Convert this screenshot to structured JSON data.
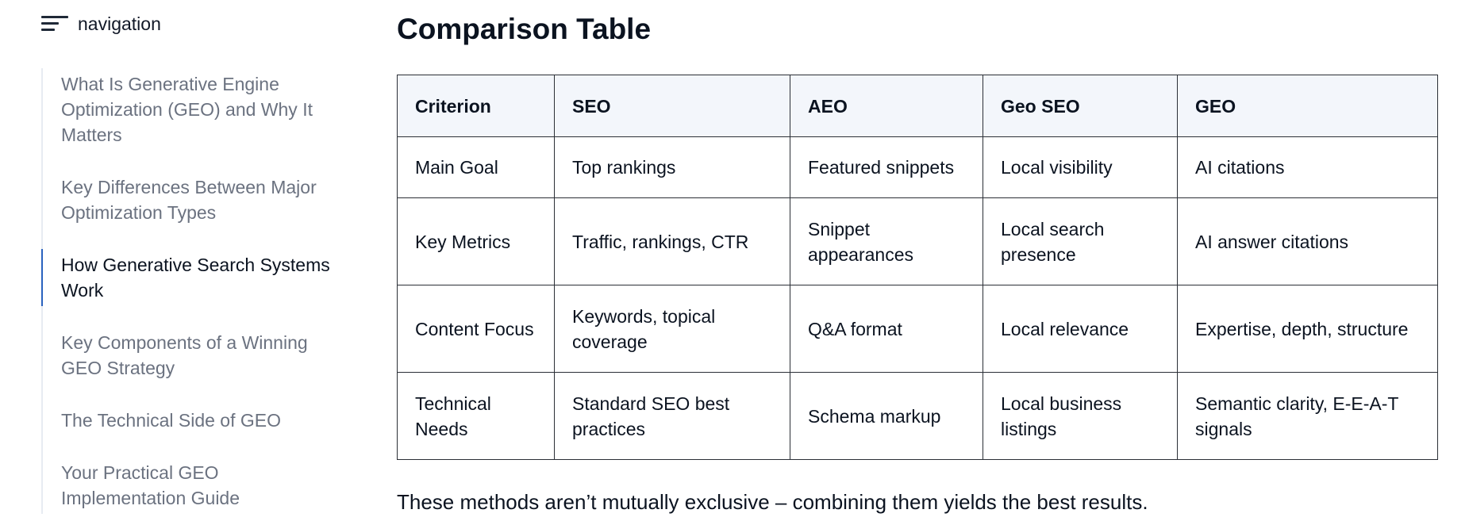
{
  "sidebar": {
    "title": "navigation",
    "items": [
      {
        "label": "What Is Generative Engine Optimization (GEO) and Why It Matters",
        "active": false
      },
      {
        "label": "Key Differences Between Major Optimization Types",
        "active": false
      },
      {
        "label": "How Generative Search Systems Work",
        "active": true
      },
      {
        "label": "Key Components of a Winning GEO Strategy",
        "active": false
      },
      {
        "label": "The Technical Side of GEO",
        "active": false
      },
      {
        "label": "Your Practical GEO Implementation Guide",
        "active": false
      }
    ]
  },
  "main": {
    "title": "Comparison Table",
    "table": {
      "headers": [
        "Criterion",
        "SEO",
        "AEO",
        "Geo SEO",
        "GEO"
      ],
      "rows": [
        [
          "Main Goal",
          "Top rankings",
          "Featured snippets",
          "Local visibility",
          "AI citations"
        ],
        [
          "Key Metrics",
          "Traffic, rankings, CTR",
          "Snippet appearances",
          "Local search presence",
          "AI answer citations"
        ],
        [
          "Content Focus",
          "Keywords, topical coverage",
          "Q&A format",
          "Local relevance",
          "Expertise, depth, structure"
        ],
        [
          "Technical Needs",
          "Standard SEO best practices",
          "Schema markup",
          "Local business listings",
          "Semantic clarity, E-E-A-T signals"
        ]
      ]
    },
    "footnote": "These methods aren’t mutually exclusive – combining them yields the best results."
  },
  "icons": {
    "nav_toggle": "hamburger-menu-icon"
  },
  "colors": {
    "active_indicator": "#2a62bf",
    "header_row_bg": "#f3f6fb",
    "muted_text": "#6b7280"
  }
}
